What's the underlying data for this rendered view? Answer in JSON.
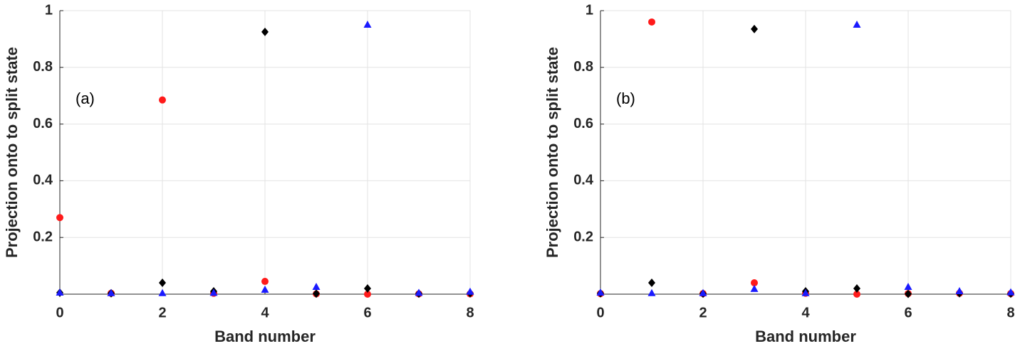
{
  "chart_data": [
    {
      "type": "scatter",
      "annotation": "(a)",
      "xlabel": "Band number",
      "ylabel": "Projection onto to split state",
      "x": [
        0,
        1,
        2,
        3,
        4,
        5,
        6,
        7,
        8
      ],
      "series": [
        {
          "color": "#ff1a1a",
          "marker": "circle",
          "values": [
            0.27,
            0.003,
            0.685,
            0.003,
            0.045,
            0.001,
            0.0,
            0.001,
            0.001
          ]
        },
        {
          "color": "#000000",
          "marker": "diamond",
          "values": [
            0.005,
            0.003,
            0.04,
            0.01,
            0.925,
            0.002,
            0.02,
            0.002,
            0.003
          ]
        },
        {
          "color": "#1a1aff",
          "marker": "triangle",
          "values": [
            0.005,
            0.003,
            0.003,
            0.004,
            0.015,
            0.025,
            0.95,
            0.004,
            0.008
          ]
        }
      ],
      "xlim": [
        0,
        8
      ],
      "xticks": [
        0,
        2,
        4,
        6,
        8
      ],
      "ylim": [
        0,
        1
      ],
      "yticks": [
        0.2,
        0.4,
        0.6,
        0.8,
        1
      ],
      "grid": true
    },
    {
      "type": "scatter",
      "annotation": "(b)",
      "xlabel": "Band number",
      "ylabel": "Projection onto to split state",
      "x": [
        0,
        1,
        2,
        3,
        4,
        5,
        6,
        7,
        8
      ],
      "series": [
        {
          "color": "#ff1a1a",
          "marker": "circle",
          "values": [
            0.002,
            0.96,
            0.002,
            0.04,
            0.003,
            0.0,
            0.002,
            0.003,
            0.002
          ]
        },
        {
          "color": "#000000",
          "marker": "diamond",
          "values": [
            0.003,
            0.04,
            0.002,
            0.935,
            0.01,
            0.02,
            0.001,
            0.003,
            0.002
          ]
        },
        {
          "color": "#1a1aff",
          "marker": "triangle",
          "values": [
            0.005,
            0.003,
            0.003,
            0.018,
            0.003,
            0.95,
            0.025,
            0.01,
            0.006
          ]
        }
      ],
      "xlim": [
        0,
        8
      ],
      "xticks": [
        0,
        2,
        4,
        6,
        8
      ],
      "ylim": [
        0,
        1
      ],
      "yticks": [
        0.2,
        0.4,
        0.6,
        0.8,
        1
      ],
      "grid": true
    }
  ]
}
